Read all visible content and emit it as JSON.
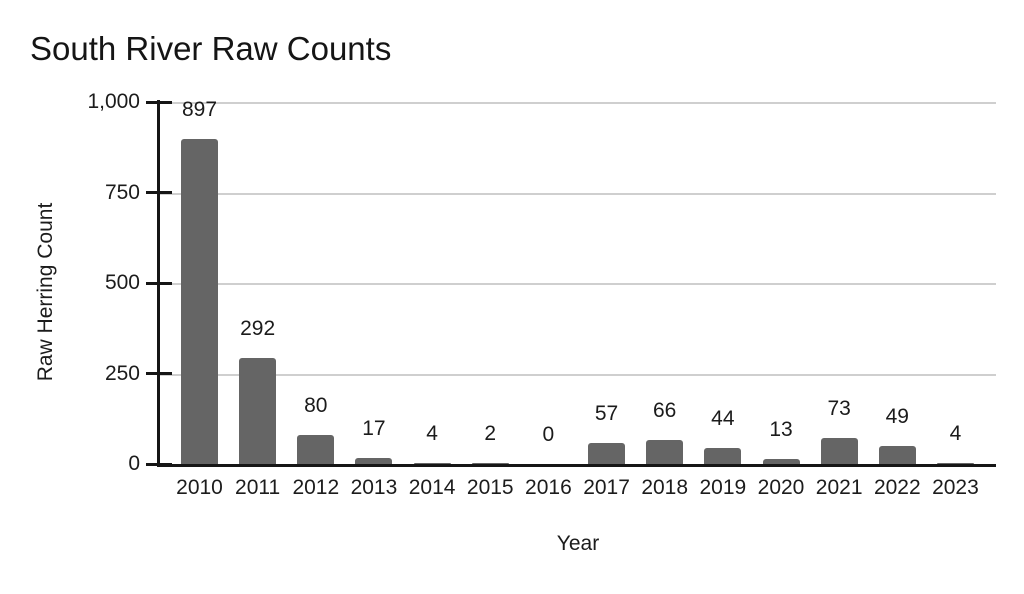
{
  "chart_data": {
    "type": "bar",
    "title": "South River Raw Counts",
    "xlabel": "Year",
    "ylabel": "Raw Herring Count",
    "categories": [
      "2010",
      "2011",
      "2012",
      "2013",
      "2014",
      "2015",
      "2016",
      "2017",
      "2018",
      "2019",
      "2020",
      "2021",
      "2022",
      "2023"
    ],
    "values": [
      897,
      292,
      80,
      17,
      4,
      2,
      0,
      57,
      66,
      44,
      13,
      73,
      49,
      4
    ],
    "bar_value_labels": [
      "897",
      "292",
      "80",
      "17",
      "4",
      "2",
      "0",
      "57",
      "66",
      "44",
      "13",
      "73",
      "49",
      "4"
    ],
    "ylim": [
      0,
      1000
    ],
    "yticks": [
      0,
      250,
      500,
      750,
      1000
    ],
    "ytick_labels": [
      "0",
      "250",
      "500",
      "750",
      "1,000"
    ],
    "grid": "horizontal",
    "legend": "none",
    "colors": {
      "bar": "#656565",
      "gridline": "#cfcfcf",
      "axis": "#161616",
      "text": "#1c1c1c"
    }
  }
}
